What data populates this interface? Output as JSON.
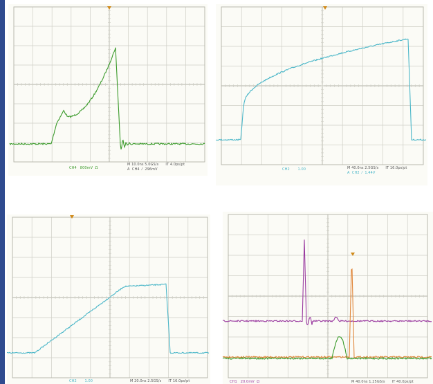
{
  "colors": {
    "sidebar": "#2f4b8f",
    "trace_green": "#3a9a2a",
    "trace_cyan": "#49b6c8",
    "trace_magenta": "#9a3aa0",
    "trace_orange": "#e0863a",
    "grid": "#cfcfc6",
    "marker": "#d08a1a"
  },
  "panels": [
    {
      "id": "scope-top-left",
      "readout_channel": "CH4   800mV  Ω",
      "readout_time": "M 10.0ns 5.0GS/s      IT 4.0ps/pt",
      "readout_trigger": "A  CH4  ⁄  296mV"
    },
    {
      "id": "scope-top-right",
      "readout_channel": "CH2       1.00",
      "readout_time": "M 40.0ns 2.5GS/s      IT 16.0ps/pt",
      "readout_trigger": "A  CH2  ⁄  1.44V"
    },
    {
      "id": "scope-bottom-left",
      "readout_channel": "CH2       1.00",
      "readout_time": "M 20.0ns 2.5GS/s      IT 16.0ps/pt",
      "readout_trigger": ""
    },
    {
      "id": "scope-bottom-right",
      "readout_channel": "CH1   20.0mV  Ω",
      "readout_time": "M 40.0ns 1.25GS/s      IT 40.0ps/pt",
      "readout_trigger": ""
    }
  ]
}
